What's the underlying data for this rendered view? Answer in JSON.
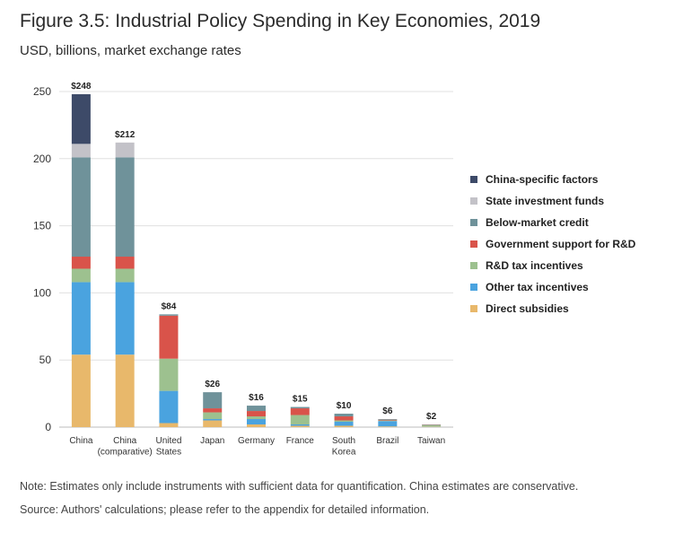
{
  "title": "Figure 3.5: Industrial Policy Spending in Key Economies, 2019",
  "subtitle": "USD, billions, market exchange rates",
  "note": "Note: Estimates only include instruments with sufficient data for quantification. China estimates are conservative.",
  "source": "Source: Authors' calculations; please refer to the appendix for detailed information.",
  "chart_data": {
    "type": "bar",
    "stacked": true,
    "categories": [
      [
        "China"
      ],
      [
        "China",
        "(comparative)"
      ],
      [
        "United",
        "States"
      ],
      [
        "Japan"
      ],
      [
        "Germany"
      ],
      [
        "France"
      ],
      [
        "South",
        "Korea"
      ],
      [
        "Brazil"
      ],
      [
        "Taiwan"
      ]
    ],
    "totals": [
      "$248",
      "$212",
      "$84",
      "$26",
      "$16",
      "$15",
      "$10",
      "$6",
      "$2"
    ],
    "series": [
      {
        "name": "Direct subsidies",
        "color": "#e8b86b",
        "values": [
          54,
          54,
          3,
          5,
          2,
          1,
          1,
          0.5,
          0.3
        ]
      },
      {
        "name": "Other tax incentives",
        "color": "#4aa3df",
        "values": [
          54,
          54,
          24,
          1,
          4,
          1,
          3,
          4,
          0.2
        ]
      },
      {
        "name": "R&D tax incentives",
        "color": "#9dc18f",
        "values": [
          10,
          10,
          24,
          5,
          2,
          7,
          1,
          0.5,
          1
        ]
      },
      {
        "name": "Government support for R&D",
        "color": "#d9534a",
        "values": [
          9,
          9,
          32,
          3,
          4,
          5,
          3,
          0.5,
          0.2
        ]
      },
      {
        "name": "Below-market credit",
        "color": "#6f929a",
        "values": [
          74,
          74,
          1,
          12,
          4,
          1,
          2,
          0.5,
          0.3
        ]
      },
      {
        "name": "State investment funds",
        "color": "#c3c2c8",
        "values": [
          10,
          11,
          0,
          0,
          0,
          0,
          0,
          0,
          0
        ]
      },
      {
        "name": "China-specific factors",
        "color": "#3d4a68",
        "values": [
          37,
          0,
          0,
          0,
          0,
          0,
          0,
          0,
          0
        ]
      }
    ],
    "legend_order": [
      6,
      5,
      4,
      3,
      2,
      1,
      0
    ],
    "legend_position": "right",
    "yticks": [
      0,
      50,
      100,
      150,
      200,
      250
    ],
    "ylim": [
      0,
      250
    ],
    "grid": true
  }
}
